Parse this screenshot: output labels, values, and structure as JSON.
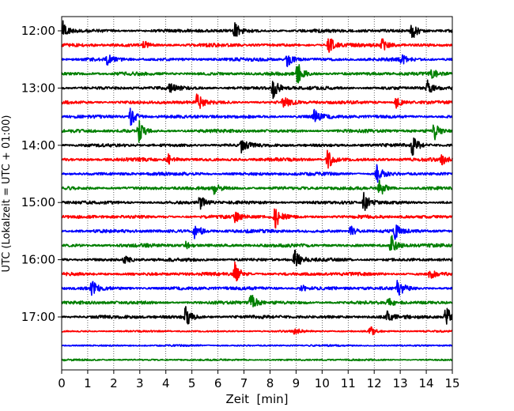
{
  "chart_data": {
    "type": "line",
    "title": "",
    "xlabel": "Zeit  [min]",
    "ylabel": "UTC (Lokalzeit = UTC + 01:00)",
    "xlim": [
      0,
      15
    ],
    "x_ticks": [
      "0",
      "1",
      "2",
      "3",
      "4",
      "5",
      "6",
      "7",
      "8",
      "9",
      "10",
      "11",
      "12",
      "13",
      "14",
      "15"
    ],
    "y_tick_labels": [
      "12:00",
      "13:00",
      "14:00",
      "15:00",
      "16:00",
      "17:00"
    ],
    "grid": "vertical dotted",
    "trace_interval_min": 15,
    "trace_colors": [
      "#000000",
      "#ff0000",
      "#0000ff",
      "#007f00"
    ],
    "trace_times": [
      "12:00",
      "12:15",
      "12:30",
      "12:45",
      "13:00",
      "13:15",
      "13:30",
      "13:45",
      "14:00",
      "14:15",
      "14:30",
      "14:45",
      "15:00",
      "15:15",
      "15:30",
      "15:45",
      "16:00",
      "16:15",
      "16:30",
      "16:45",
      "17:00",
      "17:15",
      "17:30",
      "17:45"
    ],
    "events": [
      {
        "trace": "12:00",
        "t": 0.05,
        "amp": 1.6
      },
      {
        "trace": "12:00",
        "t": 6.65,
        "amp": 1.4
      },
      {
        "trace": "12:00",
        "t": 13.45,
        "amp": 1.8
      },
      {
        "trace": "12:15",
        "t": 10.25,
        "amp": 1.7
      },
      {
        "trace": "12:15",
        "t": 12.3,
        "amp": 1.2
      },
      {
        "trace": "12:15",
        "t": 3.15,
        "amp": 0.8
      },
      {
        "trace": "12:30",
        "t": 1.75,
        "amp": 0.8
      },
      {
        "trace": "12:30",
        "t": 8.65,
        "amp": 1.3
      },
      {
        "trace": "12:30",
        "t": 13.05,
        "amp": 0.9
      },
      {
        "trace": "12:45",
        "t": 9.05,
        "amp": 2.0
      },
      {
        "trace": "12:45",
        "t": 14.2,
        "amp": 0.8
      },
      {
        "trace": "13:00",
        "t": 8.1,
        "amp": 2.0
      },
      {
        "trace": "13:00",
        "t": 14.05,
        "amp": 1.3
      },
      {
        "trace": "13:00",
        "t": 4.15,
        "amp": 0.9
      },
      {
        "trace": "13:15",
        "t": 5.2,
        "amp": 1.6
      },
      {
        "trace": "13:15",
        "t": 8.5,
        "amp": 1.1
      },
      {
        "trace": "13:15",
        "t": 12.85,
        "amp": 1.0
      },
      {
        "trace": "13:30",
        "t": 2.65,
        "amp": 1.8
      },
      {
        "trace": "13:30",
        "t": 9.7,
        "amp": 1.2
      },
      {
        "trace": "13:45",
        "t": 2.95,
        "amp": 2.0
      },
      {
        "trace": "13:45",
        "t": 14.3,
        "amp": 1.7
      },
      {
        "trace": "14:00",
        "t": 6.9,
        "amp": 1.1
      },
      {
        "trace": "14:00",
        "t": 13.45,
        "amp": 2.0
      },
      {
        "trace": "14:15",
        "t": 10.2,
        "amp": 2.0
      },
      {
        "trace": "14:15",
        "t": 4.1,
        "amp": 0.9
      },
      {
        "trace": "14:15",
        "t": 14.6,
        "amp": 0.8
      },
      {
        "trace": "14:30",
        "t": 12.1,
        "amp": 1.8
      },
      {
        "trace": "14:45",
        "t": 12.2,
        "amp": 1.8
      },
      {
        "trace": "14:45",
        "t": 5.85,
        "amp": 0.8
      },
      {
        "trace": "15:00",
        "t": 5.3,
        "amp": 1.3
      },
      {
        "trace": "15:00",
        "t": 11.6,
        "amp": 1.8
      },
      {
        "trace": "15:15",
        "t": 8.2,
        "amp": 2.0
      },
      {
        "trace": "15:15",
        "t": 6.65,
        "amp": 1.0
      },
      {
        "trace": "15:30",
        "t": 5.1,
        "amp": 1.8
      },
      {
        "trace": "15:30",
        "t": 12.8,
        "amp": 1.2
      },
      {
        "trace": "15:30",
        "t": 11.1,
        "amp": 0.9
      },
      {
        "trace": "15:45",
        "t": 12.65,
        "amp": 2.0
      },
      {
        "trace": "15:45",
        "t": 4.75,
        "amp": 0.8
      },
      {
        "trace": "16:00",
        "t": 8.95,
        "amp": 2.0
      },
      {
        "trace": "16:00",
        "t": 2.4,
        "amp": 1.0
      },
      {
        "trace": "16:15",
        "t": 6.65,
        "amp": 2.0
      },
      {
        "trace": "16:15",
        "t": 14.15,
        "amp": 1.0
      },
      {
        "trace": "16:30",
        "t": 1.15,
        "amp": 1.3
      },
      {
        "trace": "16:30",
        "t": 12.9,
        "amp": 1.8
      },
      {
        "trace": "16:30",
        "t": 9.2,
        "amp": 0.8
      },
      {
        "trace": "16:45",
        "t": 7.25,
        "amp": 1.8
      },
      {
        "trace": "16:45",
        "t": 12.5,
        "amp": 1.0
      },
      {
        "trace": "17:00",
        "t": 4.75,
        "amp": 2.0
      },
      {
        "trace": "17:00",
        "t": 14.75,
        "amp": 2.0
      },
      {
        "trace": "17:00",
        "t": 12.5,
        "amp": 0.9
      },
      {
        "trace": "17:15",
        "t": 11.85,
        "amp": 0.9
      },
      {
        "trace": "17:15",
        "t": 8.95,
        "amp": 0.6
      }
    ]
  }
}
